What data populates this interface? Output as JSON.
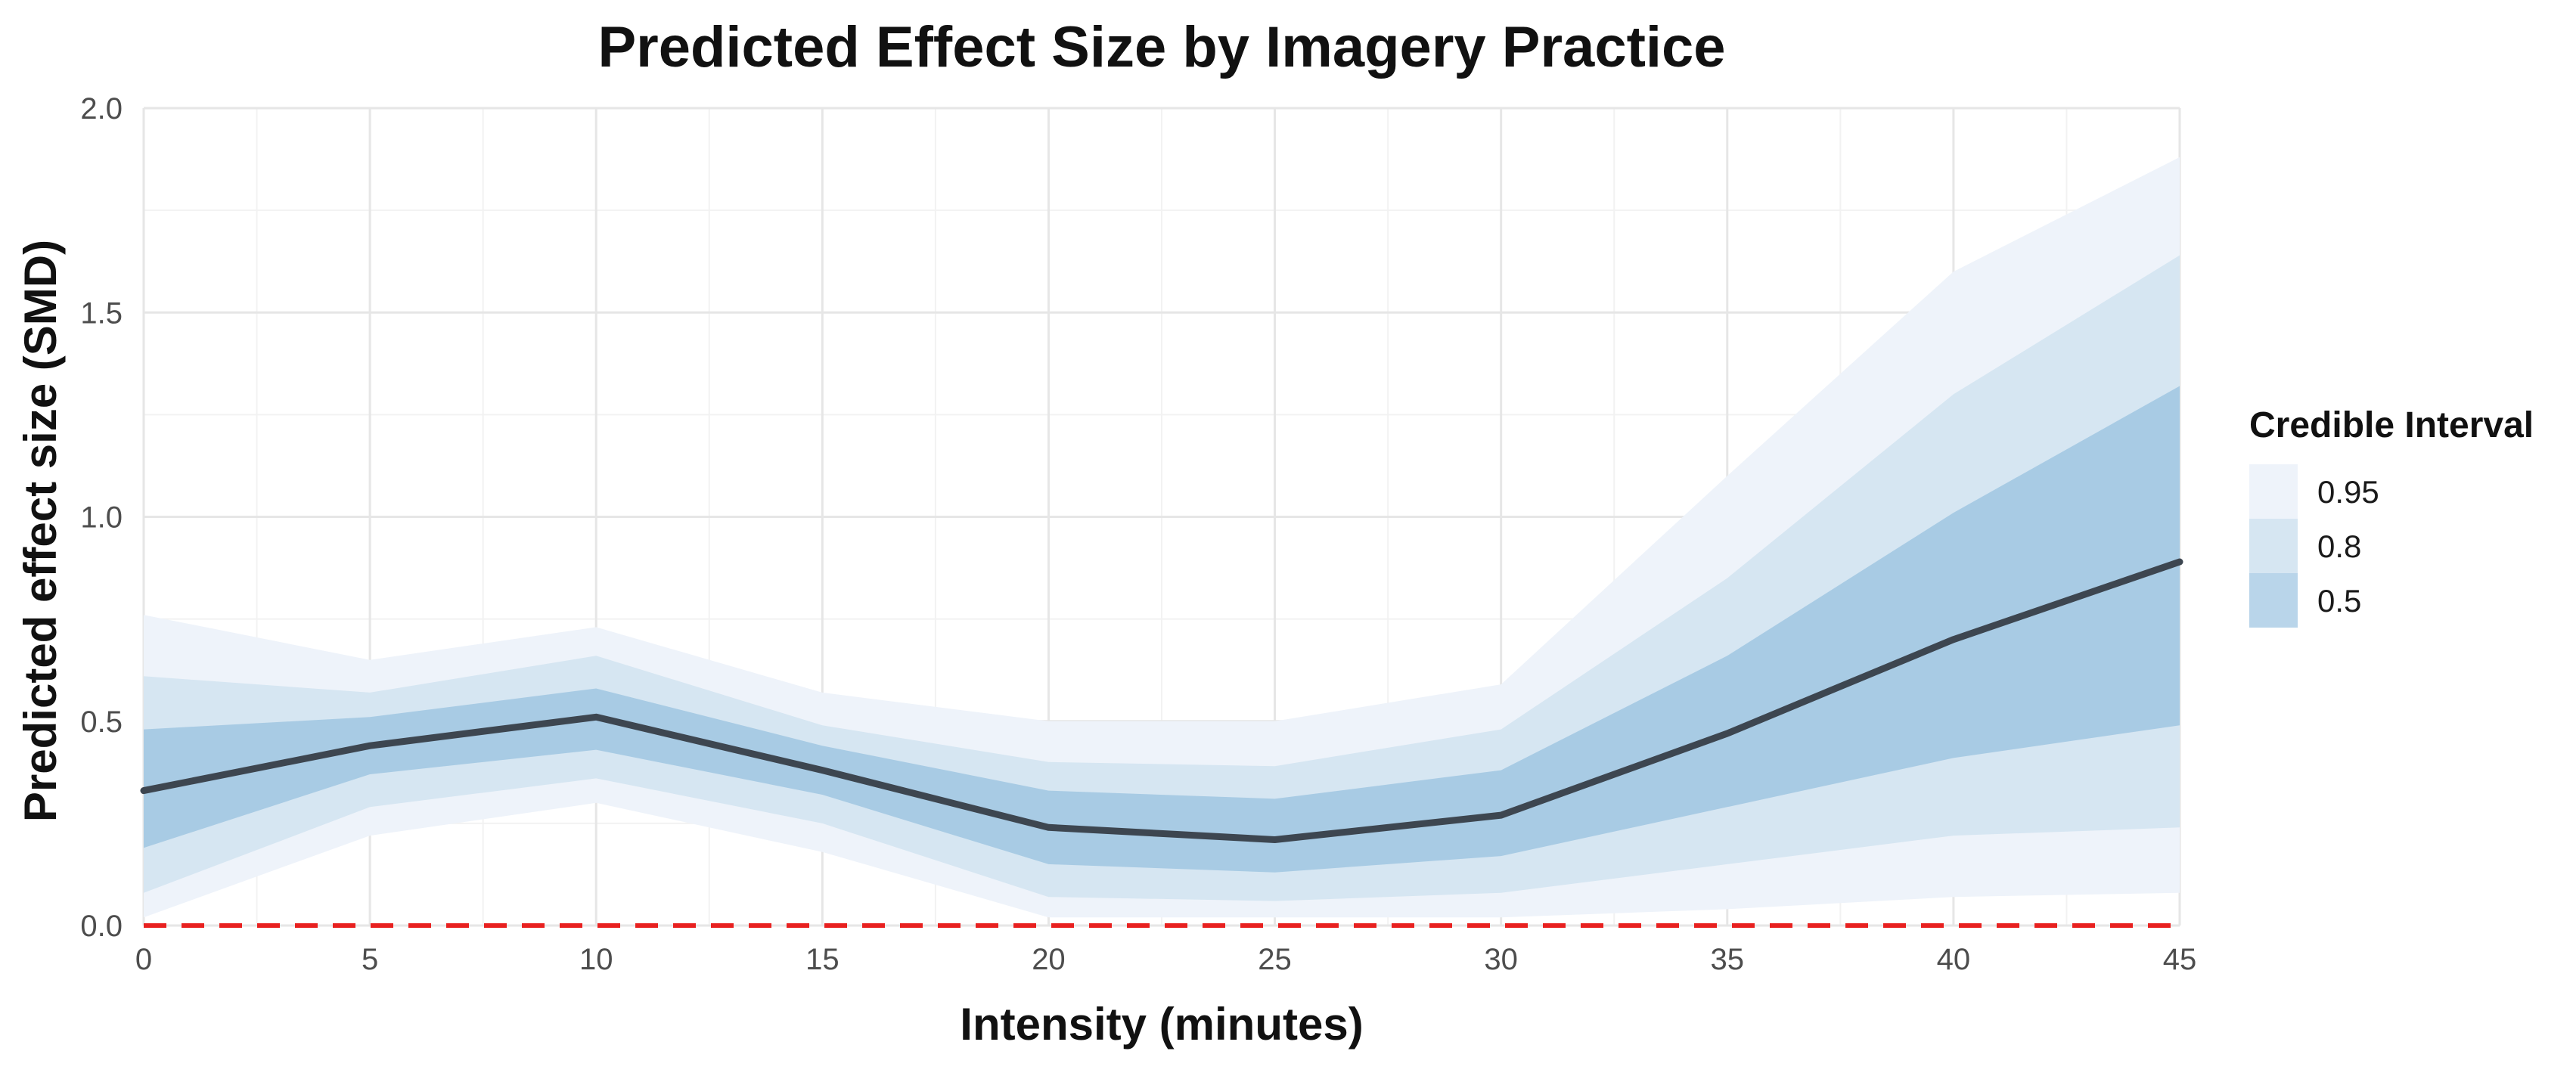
{
  "chart_data": {
    "type": "area",
    "title": "Predicted Effect Size by Imagery Practice",
    "xlabel": "Intensity (minutes)",
    "ylabel": "Predicted effect size (SMD)",
    "xlim": [
      0,
      45
    ],
    "ylim": [
      0,
      2
    ],
    "x_ticks": [
      0,
      5,
      10,
      15,
      20,
      25,
      30,
      35,
      40,
      45
    ],
    "y_ticks": [
      0,
      0.5,
      1,
      1.5,
      2
    ],
    "y_tick_labels": [
      "0.0",
      "0.5",
      "1.0",
      "1.5",
      "2.0"
    ],
    "grid": true,
    "x": [
      0,
      5,
      10,
      15,
      20,
      25,
      30,
      35,
      40,
      45
    ],
    "median": [
      0.33,
      0.44,
      0.51,
      0.38,
      0.24,
      0.21,
      0.27,
      0.47,
      0.7,
      0.89
    ],
    "intervals": [
      {
        "level": "0.95",
        "color": "#eef3fa",
        "lower": [
          0.02,
          0.22,
          0.3,
          0.18,
          0.02,
          0.02,
          0.02,
          0.04,
          0.07,
          0.08
        ],
        "upper": [
          0.76,
          0.65,
          0.73,
          0.57,
          0.5,
          0.5,
          0.59,
          1.1,
          1.6,
          1.88
        ]
      },
      {
        "level": "0.8",
        "color": "#d6e6f2",
        "lower": [
          0.08,
          0.29,
          0.36,
          0.25,
          0.07,
          0.06,
          0.08,
          0.15,
          0.22,
          0.24
        ],
        "upper": [
          0.61,
          0.57,
          0.66,
          0.49,
          0.4,
          0.39,
          0.48,
          0.85,
          1.3,
          1.64
        ]
      },
      {
        "level": "0.5",
        "color": "#a8cbe4",
        "lower": [
          0.19,
          0.37,
          0.43,
          0.32,
          0.15,
          0.13,
          0.17,
          0.29,
          0.41,
          0.49
        ],
        "upper": [
          0.48,
          0.51,
          0.58,
          0.44,
          0.33,
          0.31,
          0.38,
          0.66,
          1.01,
          1.32
        ]
      }
    ],
    "reference_line": {
      "y": 0,
      "color": "#e8201f",
      "style": "dashed"
    },
    "median_color": "#3d4650",
    "legend": {
      "title": "Credible Interval",
      "position": "right",
      "entries": [
        {
          "label": "0.95",
          "color": "#eef3fa"
        },
        {
          "label": "0.8",
          "color": "#d6e6f2"
        },
        {
          "label": "0.5",
          "color": "#b9d5ea"
        }
      ]
    }
  }
}
